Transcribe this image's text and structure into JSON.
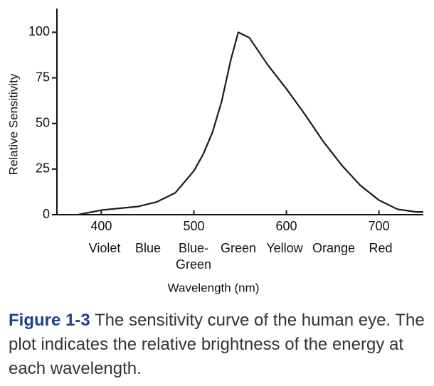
{
  "chart_data": {
    "type": "line",
    "xlabel": "Wavelength (nm)",
    "ylabel": "Relative Sensitivity",
    "x": [
      375,
      390,
      400,
      420,
      440,
      460,
      480,
      500,
      510,
      520,
      530,
      540,
      548,
      560,
      580,
      600,
      620,
      640,
      660,
      680,
      700,
      720,
      740,
      748
    ],
    "values": [
      0,
      1.5,
      2.5,
      3.5,
      4.5,
      7,
      12,
      24,
      33,
      45,
      62,
      85,
      100,
      97,
      82,
      69,
      55,
      40,
      27,
      16,
      8,
      3,
      1.5,
      1.5
    ],
    "color": "#1a1a1a",
    "xlim": [
      352,
      748
    ],
    "ylim": [
      0,
      113
    ],
    "xticks": [
      400,
      500,
      600,
      700
    ],
    "yticks": [
      0,
      25,
      50,
      75,
      100
    ],
    "band_labels": [
      [
        "Violet"
      ],
      [
        "Blue"
      ],
      [
        "Blue-",
        "Green"
      ],
      [
        "Green"
      ],
      [
        "Yellow"
      ],
      [
        "Orange"
      ],
      [
        "Red"
      ]
    ]
  },
  "caption": {
    "label": "Figure 1-3",
    "text": "The sensitivity curve of the human eye. The plot indicates the relative brightness of the energy at each wavelength."
  }
}
